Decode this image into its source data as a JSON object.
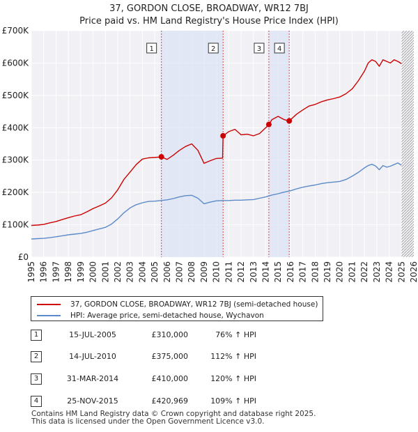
{
  "chart_data": {
    "type": "line",
    "title": "37, GORDON CLOSE, BROADWAY, WR12 7BJ",
    "subtitle": "Price paid vs. HM Land Registry's House Price Index (HPI)",
    "xlabel": "",
    "ylabel": "",
    "xlim": [
      1995,
      2026
    ],
    "ylim": [
      0,
      700000
    ],
    "y_ticks": [
      {
        "value": 0,
        "label": "£0"
      },
      {
        "value": 100000,
        "label": "£100K"
      },
      {
        "value": 200000,
        "label": "£200K"
      },
      {
        "value": 300000,
        "label": "£300K"
      },
      {
        "value": 400000,
        "label": "£400K"
      },
      {
        "value": 500000,
        "label": "£500K"
      },
      {
        "value": 600000,
        "label": "£600K"
      },
      {
        "value": 700000,
        "label": "£700K"
      }
    ],
    "x_ticks": [
      "1995",
      "1996",
      "1997",
      "1998",
      "1999",
      "2000",
      "2001",
      "2002",
      "2003",
      "2004",
      "2005",
      "2006",
      "2007",
      "2008",
      "2009",
      "2010",
      "2011",
      "2012",
      "2013",
      "2014",
      "2015",
      "2016",
      "2017",
      "2018",
      "2019",
      "2020",
      "2021",
      "2022",
      "2023",
      "2024",
      "2025",
      "2026"
    ],
    "grid": true,
    "shaded_periods": [
      {
        "from": 2005.54,
        "to": 2010.54
      },
      {
        "from": 2014.25,
        "to": 2015.9
      }
    ],
    "hatched_from": 2025.0,
    "series": [
      {
        "name": "37, GORDON CLOSE, BROADWAY, WR12 7BJ (semi-detached house)",
        "color": "#cc0000",
        "x": [
          1995.0,
          1995.5,
          1996.0,
          1996.5,
          1997.0,
          1997.5,
          1998.0,
          1998.5,
          1999.0,
          1999.5,
          2000.0,
          2000.5,
          2001.0,
          2001.5,
          2002.0,
          2002.5,
          2003.0,
          2003.5,
          2004.0,
          2004.5,
          2005.0,
          2005.54,
          2006.0,
          2006.5,
          2007.0,
          2007.5,
          2008.0,
          2008.5,
          2009.0,
          2009.5,
          2010.0,
          2010.5,
          2010.54,
          2011.0,
          2011.5,
          2012.0,
          2012.5,
          2013.0,
          2013.5,
          2014.0,
          2014.25,
          2014.5,
          2015.0,
          2015.5,
          2015.9,
          2016.5,
          2017.0,
          2017.5,
          2018.0,
          2018.5,
          2019.0,
          2019.5,
          2020.0,
          2020.5,
          2021.0,
          2021.5,
          2022.0,
          2022.3,
          2022.6,
          2022.9,
          2023.2,
          2023.5,
          2023.8,
          2024.1,
          2024.4,
          2024.7,
          2025.0
        ],
        "values": [
          98000,
          99000,
          101000,
          106000,
          110000,
          116000,
          122000,
          127000,
          131000,
          140000,
          150000,
          158000,
          167000,
          183000,
          208000,
          240000,
          263000,
          286000,
          303000,
          307000,
          308000,
          310000,
          302000,
          315000,
          330000,
          342000,
          350000,
          330000,
          290000,
          298000,
          305000,
          306000,
          375000,
          388000,
          395000,
          378000,
          380000,
          375000,
          382000,
          400000,
          410000,
          425000,
          435000,
          425000,
          420969,
          442000,
          455000,
          467000,
          472000,
          480000,
          486000,
          490000,
          495000,
          505000,
          520000,
          545000,
          575000,
          600000,
          610000,
          605000,
          590000,
          610000,
          605000,
          600000,
          610000,
          605000,
          598000
        ]
      },
      {
        "name": "HPI: Average price, semi-detached house, Wychavon",
        "color": "#5b8ac8",
        "x": [
          1995.0,
          1995.5,
          1996.0,
          1996.5,
          1997.0,
          1997.5,
          1998.0,
          1998.5,
          1999.0,
          1999.5,
          2000.0,
          2000.5,
          2001.0,
          2001.5,
          2002.0,
          2002.5,
          2003.0,
          2003.5,
          2004.0,
          2004.5,
          2005.0,
          2005.5,
          2006.0,
          2006.5,
          2007.0,
          2007.5,
          2008.0,
          2008.5,
          2009.0,
          2009.5,
          2010.0,
          2010.5,
          2011.0,
          2011.5,
          2012.0,
          2012.5,
          2013.0,
          2013.5,
          2014.0,
          2014.5,
          2015.0,
          2015.5,
          2016.0,
          2016.5,
          2017.0,
          2017.5,
          2018.0,
          2018.5,
          2019.0,
          2019.5,
          2020.0,
          2020.5,
          2021.0,
          2021.5,
          2022.0,
          2022.3,
          2022.6,
          2022.9,
          2023.2,
          2023.5,
          2023.8,
          2024.1,
          2024.4,
          2024.7,
          2025.0
        ],
        "values": [
          56000,
          57000,
          58000,
          60000,
          63000,
          66000,
          69000,
          71000,
          73000,
          77000,
          82000,
          87000,
          92000,
          102000,
          118000,
          137000,
          152000,
          162000,
          168000,
          172000,
          173000,
          175000,
          177000,
          181000,
          186000,
          190000,
          191000,
          182000,
          165000,
          170000,
          174000,
          175000,
          175000,
          176000,
          176000,
          177000,
          178000,
          182000,
          186000,
          192000,
          196000,
          201000,
          205000,
          211000,
          216000,
          220000,
          223000,
          227000,
          230000,
          232000,
          234000,
          240000,
          250000,
          262000,
          276000,
          283000,
          287000,
          282000,
          270000,
          283000,
          278000,
          281000,
          286000,
          291000,
          284000
        ]
      }
    ],
    "transactions": [
      {
        "num": "1",
        "x": 2005.54,
        "value": 310000,
        "date": "15-JUL-2005",
        "price": "£310,000",
        "hpi": "76% ↑ HPI"
      },
      {
        "num": "2",
        "x": 2010.54,
        "value": 375000,
        "date": "14-JUL-2010",
        "price": "£375,000",
        "hpi": "112% ↑ HPI"
      },
      {
        "num": "3",
        "x": 2014.25,
        "value": 410000,
        "date": "31-MAR-2014",
        "price": "£410,000",
        "hpi": "120% ↑ HPI"
      },
      {
        "num": "4",
        "x": 2015.9,
        "value": 420969,
        "date": "25-NOV-2015",
        "price": "£420,969",
        "hpi": "109% ↑ HPI"
      }
    ],
    "legend": [
      {
        "label": "37, GORDON CLOSE, BROADWAY, WR12 7BJ (semi-detached house)",
        "color": "#cc0000"
      },
      {
        "label": "HPI: Average price, semi-detached house, Wychavon",
        "color": "#5b8ac8"
      }
    ]
  },
  "footer": {
    "line1": "Contains HM Land Registry data © Crown copyright and database right 2025.",
    "line2": "This data is licensed under the Open Government Licence v3.0."
  }
}
